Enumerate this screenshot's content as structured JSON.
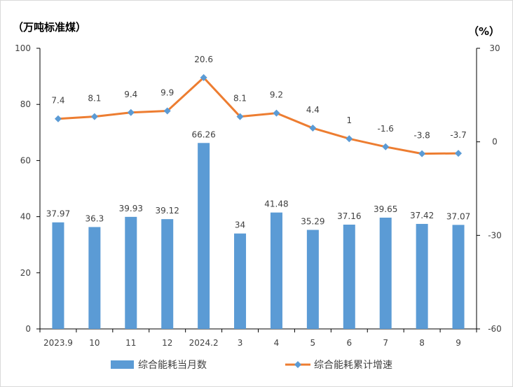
{
  "chart_data": {
    "type": "bar+line",
    "left_unit": "（万吨标准煤）",
    "right_unit": "（%）",
    "categories": [
      "2023.9",
      "10",
      "11",
      "12",
      "2024.2",
      "3",
      "4",
      "5",
      "6",
      "7",
      "8",
      "9"
    ],
    "series": [
      {
        "name": "综合能耗当月数",
        "type": "bar",
        "axis": "left",
        "color": "#5B9BD5",
        "values": [
          37.97,
          36.3,
          39.93,
          39.12,
          66.26,
          34,
          41.48,
          35.29,
          37.16,
          39.65,
          37.42,
          37.07
        ]
      },
      {
        "name": "综合能耗累计增速",
        "type": "line",
        "axis": "right",
        "color": "#ED7D31",
        "marker_color": "#5B9BD5",
        "values": [
          7.4,
          8.1,
          9.4,
          9.9,
          20.6,
          8.1,
          9.2,
          4.4,
          1,
          -1.6,
          -3.8,
          -3.7
        ]
      }
    ],
    "left_axis": {
      "range": [
        0,
        100
      ],
      "ticks": [
        0,
        20,
        40,
        60,
        80,
        100
      ]
    },
    "right_axis": {
      "range": [
        -60,
        30
      ],
      "ticks": [
        -60,
        -30,
        0,
        30
      ]
    },
    "grid": false,
    "legend_position": "bottom"
  }
}
